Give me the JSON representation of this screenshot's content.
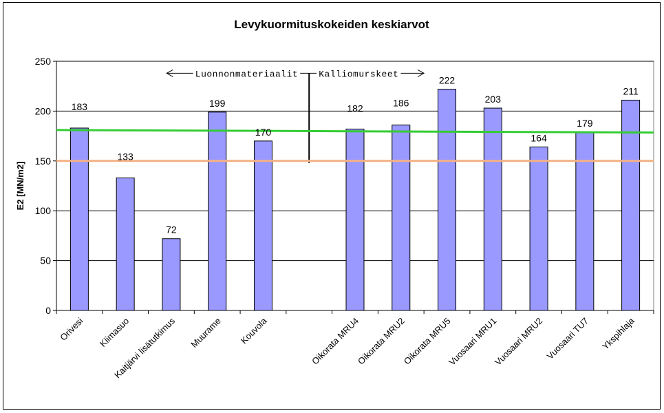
{
  "chart_data": {
    "type": "bar",
    "title": "Levykuormituskokeiden keskiarvot",
    "xlabel": "",
    "ylabel": "E2 [MN/m2]",
    "ylim": [
      0,
      250
    ],
    "yticks": [
      0,
      50,
      100,
      150,
      200,
      250
    ],
    "grid": true,
    "categories": [
      "Orivesi",
      "Kiimasuo",
      "Kaitjärvi lisätutkimus",
      "Muurame",
      "Kouvola",
      "",
      "Oikorata MRU4",
      "Oikorata MRU2",
      "Oikorata MRU5",
      "Vuosaari MRU1",
      "Vuosaari MRU2",
      "Vuosaari TU7",
      "Ykspihlaja"
    ],
    "values": [
      183,
      133,
      72,
      199,
      170,
      null,
      182,
      186,
      222,
      203,
      164,
      179,
      211
    ],
    "value_labels": [
      "183",
      "133",
      "72",
      "199",
      "170",
      "",
      "182",
      "186",
      "222",
      "203",
      "164",
      "179",
      "211"
    ],
    "bar_color": "#9999ff",
    "reference_lines": [
      {
        "y_start": 181,
        "y_end": 178.5,
        "color": "#33cc33"
      },
      {
        "y_start": 150,
        "y_end": 150,
        "color": "#f4b183"
      }
    ],
    "annotations": {
      "left_label": "Luonnonmateriaalit",
      "right_label": "Kalliomurskeet",
      "divider_y_top": 238,
      "divider_y_bottom": 148
    }
  }
}
